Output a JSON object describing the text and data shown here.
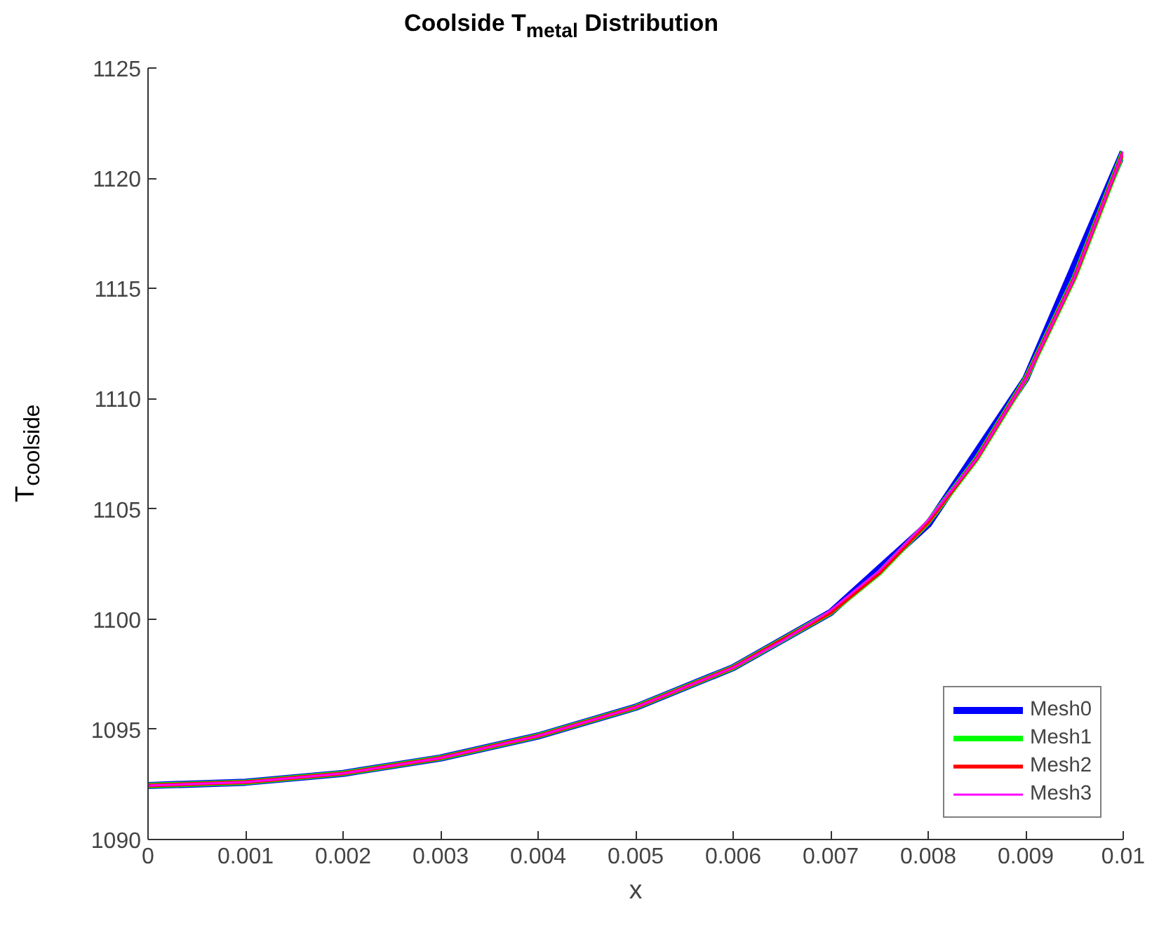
{
  "chart_data": {
    "type": "line",
    "title": "Coolside T$_{metal}$ Distribution",
    "xlabel": "x",
    "ylabel": "T$_{coolside}$",
    "xlim": [
      0,
      0.01
    ],
    "ylim": [
      1090,
      1125
    ],
    "xticks": [
      {
        "value": 0,
        "label": "0"
      },
      {
        "value": 0.001,
        "label": "0.001"
      },
      {
        "value": 0.002,
        "label": "0.002"
      },
      {
        "value": 0.003,
        "label": "0.003"
      },
      {
        "value": 0.004,
        "label": "0.004"
      },
      {
        "value": 0.005,
        "label": "0.005"
      },
      {
        "value": 0.006,
        "label": "0.006"
      },
      {
        "value": 0.007,
        "label": "0.007"
      },
      {
        "value": 0.008,
        "label": "0.008"
      },
      {
        "value": 0.009,
        "label": "0.009"
      },
      {
        "value": 0.01,
        "label": "0.01"
      }
    ],
    "yticks": [
      1090,
      1095,
      1100,
      1105,
      1110,
      1115,
      1120,
      1125
    ],
    "grid": false,
    "legend": "bottom right",
    "line_style": "solid",
    "series": [
      {
        "name": "Mesh0",
        "color": "#0000ff",
        "x": [
          0,
          0.001,
          0.002,
          0.003,
          0.004,
          0.005,
          0.006,
          0.007,
          0.008,
          0.009,
          0.01
        ],
        "values": [
          1092.45,
          1092.6,
          1093.0,
          1093.7,
          1094.7,
          1096.0,
          1097.8,
          1100.3,
          1104.3,
          1110.9,
          1121.2
        ]
      },
      {
        "name": "Mesh1",
        "color": "#00ff00",
        "x": [
          0,
          0.001,
          0.002,
          0.003,
          0.004,
          0.005,
          0.006,
          0.007,
          0.0075,
          0.008,
          0.0085,
          0.009,
          0.0095,
          0.01
        ],
        "values": [
          1092.45,
          1092.6,
          1093.0,
          1093.7,
          1094.7,
          1096.0,
          1097.8,
          1100.3,
          1102.1,
          1104.4,
          1107.3,
          1110.9,
          1115.5,
          1121.2
        ]
      },
      {
        "name": "Mesh2",
        "color": "#ff0000",
        "x": [
          0,
          0.001,
          0.002,
          0.003,
          0.004,
          0.005,
          0.006,
          0.007,
          0.0075,
          0.008,
          0.0085,
          0.009,
          0.0095,
          0.01
        ],
        "values": [
          1092.45,
          1092.6,
          1093.0,
          1093.7,
          1094.7,
          1096.0,
          1097.8,
          1100.3,
          1102.1,
          1104.4,
          1107.3,
          1110.9,
          1115.5,
          1121.2
        ]
      },
      {
        "name": "Mesh3",
        "color": "#ff00ff",
        "x": [
          0,
          0.001,
          0.002,
          0.003,
          0.004,
          0.005,
          0.006,
          0.0065,
          0.007,
          0.0075,
          0.008,
          0.0085,
          0.009,
          0.0095,
          0.01
        ],
        "values": [
          1092.45,
          1092.6,
          1093.0,
          1093.7,
          1094.7,
          1096.0,
          1097.8,
          1099.0,
          1100.4,
          1102.2,
          1104.5,
          1107.3,
          1110.9,
          1115.5,
          1121.2
        ]
      }
    ]
  }
}
